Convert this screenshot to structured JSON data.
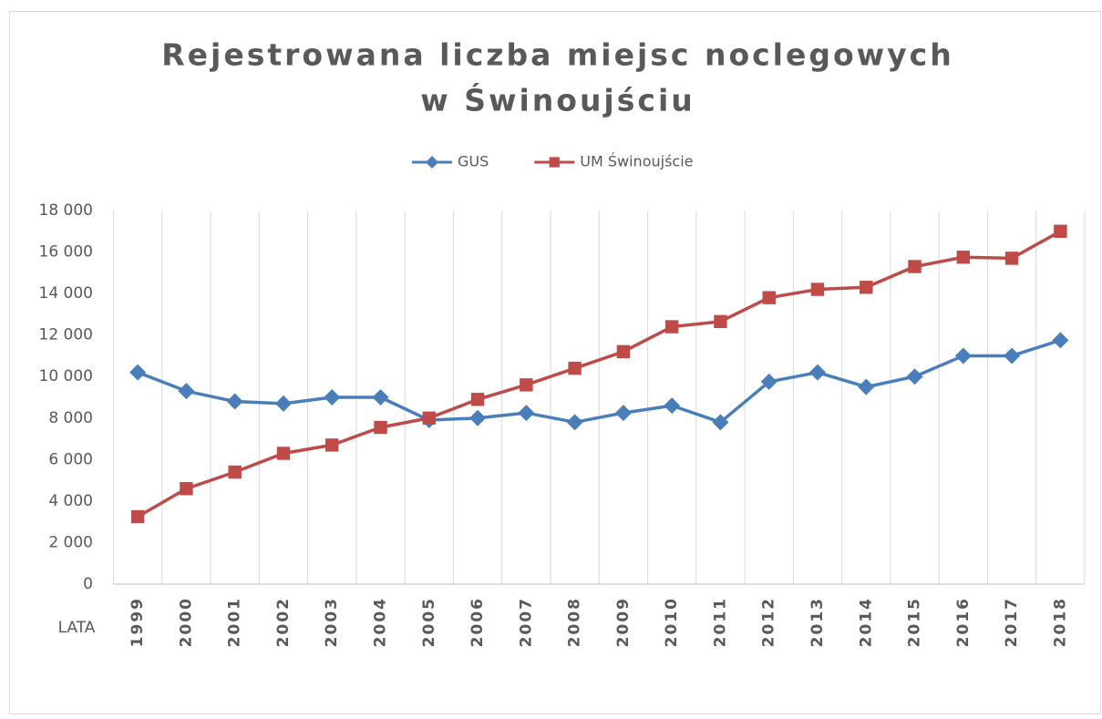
{
  "chart_data": {
    "type": "line",
    "title": [
      "Rejestrowana liczba miejsc noclegowych",
      "w Świnoujściu"
    ],
    "x_label": "LATA",
    "categories": [
      "1999",
      "2000",
      "2001",
      "2002",
      "2003",
      "2004",
      "2005",
      "2006",
      "2007",
      "2008",
      "2009",
      "2010",
      "2011",
      "2012",
      "2013",
      "2014",
      "2015",
      "2016",
      "2017",
      "2018"
    ],
    "series": [
      {
        "name": "GUS",
        "color": "#4a7ebb",
        "marker": "diamond",
        "values": [
          10200,
          9300,
          8800,
          8700,
          9000,
          9000,
          7900,
          8000,
          8250,
          7800,
          8250,
          8600,
          7800,
          9750,
          10200,
          9500,
          10000,
          11000,
          11000,
          11750
        ]
      },
      {
        "name": "UM Świnoujście",
        "color": "#be4b48",
        "marker": "square",
        "values": [
          3250,
          4600,
          5400,
          6300,
          6700,
          7550,
          8000,
          8900,
          9600,
          10400,
          11200,
          12400,
          12650,
          13800,
          14200,
          14300,
          15300,
          15750,
          15700,
          17000
        ]
      }
    ],
    "ylim": [
      0,
      18000
    ],
    "yticks": [
      0,
      {
        "value": 2000,
        "label": "2 000"
      },
      {
        "value": 4000,
        "label": "4 000"
      },
      {
        "value": 6000,
        "label": "6 000"
      },
      {
        "value": 8000,
        "label": "8 000"
      },
      {
        "value": 10000,
        "label": "10 000"
      },
      {
        "value": 12000,
        "label": "12 000"
      },
      {
        "value": 14000,
        "label": "14 000"
      },
      {
        "value": 16000,
        "label": "16 000"
      },
      {
        "value": 18000,
        "label": "18 000"
      }
    ],
    "xgrid": true,
    "legend": "top"
  }
}
